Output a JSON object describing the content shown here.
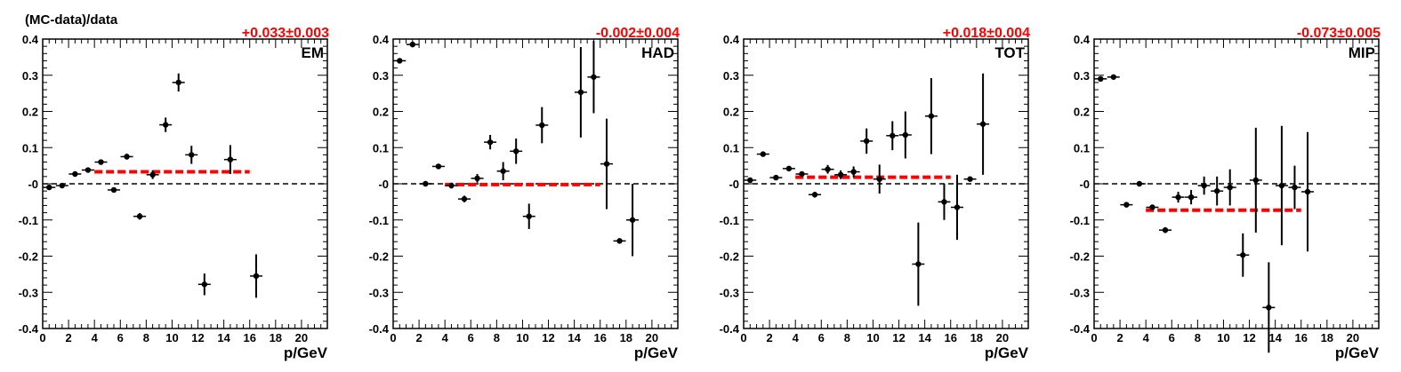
{
  "figure": {
    "ylabel": "(MC-data)/data",
    "xlabel": "p/GeV"
  },
  "chart_data": [
    {
      "type": "scatter",
      "label": "EM",
      "fit_text": "+0.033±0.003",
      "fit_value": 0.033,
      "fit_range": [
        4,
        16
      ],
      "xlim": [
        0,
        22
      ],
      "ylim": [
        -0.4,
        0.4
      ],
      "xticks": [
        "0",
        "2",
        "4",
        "6",
        "8",
        "10",
        "12",
        "14",
        "16",
        "18",
        "20"
      ],
      "yticks": [
        "0.4",
        "0.3",
        "0.2",
        "0.1",
        "-0",
        "-0.1",
        "-0.2",
        "-0.3",
        "-0.4"
      ],
      "reference_line": 0,
      "points": [
        {
          "x": 0.5,
          "y": -0.01,
          "err": 0.006
        },
        {
          "x": 1.5,
          "y": -0.005,
          "err": 0.006
        },
        {
          "x": 2.5,
          "y": 0.027,
          "err": 0.006
        },
        {
          "x": 3.5,
          "y": 0.038,
          "err": 0.006
        },
        {
          "x": 4.5,
          "y": 0.06,
          "err": 0.007
        },
        {
          "x": 5.5,
          "y": -0.017,
          "err": 0.007
        },
        {
          "x": 6.5,
          "y": 0.075,
          "err": 0.008
        },
        {
          "x": 7.5,
          "y": -0.09,
          "err": 0.009
        },
        {
          "x": 8.5,
          "y": 0.025,
          "err": 0.012
        },
        {
          "x": 9.5,
          "y": 0.163,
          "err": 0.02
        },
        {
          "x": 10.5,
          "y": 0.28,
          "err": 0.025
        },
        {
          "x": 11.5,
          "y": 0.08,
          "err": 0.025
        },
        {
          "x": 12.5,
          "y": -0.278,
          "err": 0.03
        },
        {
          "x": 14.5,
          "y": 0.067,
          "err": 0.04
        },
        {
          "x": 16.5,
          "y": -0.255,
          "err": 0.06
        }
      ]
    },
    {
      "type": "scatter",
      "label": "HAD",
      "fit_text": "-0.002±0.004",
      "fit_value": -0.002,
      "fit_range": [
        4,
        16
      ],
      "xlim": [
        0,
        22
      ],
      "ylim": [
        -0.4,
        0.4
      ],
      "xticks": [
        "0",
        "2",
        "4",
        "6",
        "8",
        "10",
        "12",
        "14",
        "16",
        "18",
        "20"
      ],
      "yticks": [
        "0.4",
        "0.3",
        "0.2",
        "0.1",
        "-0",
        "-0.1",
        "-0.2",
        "-0.3",
        "-0.4"
      ],
      "reference_line": 0,
      "points": [
        {
          "x": 0.5,
          "y": 0.34,
          "err": 0.006
        },
        {
          "x": 1.5,
          "y": 0.385,
          "err": 0.006
        },
        {
          "x": 2.5,
          "y": 0.0,
          "err": 0.006
        },
        {
          "x": 3.5,
          "y": 0.048,
          "err": 0.007
        },
        {
          "x": 4.5,
          "y": -0.005,
          "err": 0.008
        },
        {
          "x": 5.5,
          "y": -0.042,
          "err": 0.009
        },
        {
          "x": 6.5,
          "y": 0.015,
          "err": 0.012
        },
        {
          "x": 7.5,
          "y": 0.115,
          "err": 0.02
        },
        {
          "x": 8.5,
          "y": 0.035,
          "err": 0.025
        },
        {
          "x": 9.5,
          "y": 0.09,
          "err": 0.035
        },
        {
          "x": 10.5,
          "y": -0.09,
          "err": 0.035
        },
        {
          "x": 11.5,
          "y": 0.162,
          "err": 0.05
        },
        {
          "x": 14.5,
          "y": 0.253,
          "err": 0.125
        },
        {
          "x": 15.5,
          "y": 0.295,
          "err": 0.1
        },
        {
          "x": 16.5,
          "y": 0.055,
          "err": 0.125
        },
        {
          "x": 17.5,
          "y": -0.158,
          "err": 0.006
        },
        {
          "x": 18.5,
          "y": -0.1,
          "err": 0.1
        }
      ]
    },
    {
      "type": "scatter",
      "label": "TOT",
      "fit_text": "+0.018±0.004",
      "fit_value": 0.018,
      "fit_range": [
        4,
        16
      ],
      "xlim": [
        0,
        22
      ],
      "ylim": [
        -0.4,
        0.4
      ],
      "xticks": [
        "0",
        "2",
        "4",
        "6",
        "8",
        "10",
        "12",
        "14",
        "16",
        "18",
        "20"
      ],
      "yticks": [
        "0.4",
        "0.3",
        "0.2",
        "0.1",
        "-0",
        "-0.1",
        "-0.2",
        "-0.3",
        "-0.4"
      ],
      "reference_line": 0,
      "points": [
        {
          "x": 0.5,
          "y": 0.01,
          "err": 0.006
        },
        {
          "x": 1.5,
          "y": 0.082,
          "err": 0.006
        },
        {
          "x": 2.5,
          "y": 0.017,
          "err": 0.006
        },
        {
          "x": 3.5,
          "y": 0.042,
          "err": 0.006
        },
        {
          "x": 4.5,
          "y": 0.027,
          "err": 0.007
        },
        {
          "x": 5.5,
          "y": -0.03,
          "err": 0.008
        },
        {
          "x": 6.5,
          "y": 0.04,
          "err": 0.012
        },
        {
          "x": 7.5,
          "y": 0.025,
          "err": 0.012
        },
        {
          "x": 8.5,
          "y": 0.033,
          "err": 0.015
        },
        {
          "x": 9.5,
          "y": 0.118,
          "err": 0.035
        },
        {
          "x": 10.5,
          "y": 0.013,
          "err": 0.04
        },
        {
          "x": 11.5,
          "y": 0.133,
          "err": 0.04
        },
        {
          "x": 12.5,
          "y": 0.135,
          "err": 0.065
        },
        {
          "x": 13.5,
          "y": -0.222,
          "err": 0.115
        },
        {
          "x": 14.5,
          "y": 0.187,
          "err": 0.105
        },
        {
          "x": 15.5,
          "y": -0.05,
          "err": 0.05
        },
        {
          "x": 16.5,
          "y": -0.065,
          "err": 0.09
        },
        {
          "x": 17.5,
          "y": 0.013,
          "err": 0.006
        },
        {
          "x": 18.5,
          "y": 0.165,
          "err": 0.14
        }
      ]
    },
    {
      "type": "scatter",
      "label": "MIP",
      "fit_text": "-0.073±0.005",
      "fit_value": -0.073,
      "fit_range": [
        4,
        16
      ],
      "xlim": [
        0,
        22
      ],
      "ylim": [
        -0.4,
        0.4
      ],
      "xticks": [
        "0",
        "2",
        "4",
        "6",
        "8",
        "10",
        "12",
        "14",
        "16",
        "18",
        "20"
      ],
      "yticks": [
        "0.4",
        "0.3",
        "0.2",
        "0.1",
        "-0",
        "-0.1",
        "-0.2",
        "-0.3",
        "-0.4"
      ],
      "reference_line": 0,
      "points": [
        {
          "x": 0.5,
          "y": 0.29,
          "err": 0.006
        },
        {
          "x": 1.5,
          "y": 0.295,
          "err": 0.006
        },
        {
          "x": 2.5,
          "y": -0.058,
          "err": 0.006
        },
        {
          "x": 3.5,
          "y": 0.0,
          "err": 0.006
        },
        {
          "x": 4.5,
          "y": -0.065,
          "err": 0.006
        },
        {
          "x": 5.5,
          "y": -0.128,
          "err": 0.008
        },
        {
          "x": 6.5,
          "y": -0.037,
          "err": 0.015
        },
        {
          "x": 7.5,
          "y": -0.037,
          "err": 0.02
        },
        {
          "x": 8.5,
          "y": -0.005,
          "err": 0.025
        },
        {
          "x": 9.5,
          "y": -0.02,
          "err": 0.04
        },
        {
          "x": 10.5,
          "y": -0.01,
          "err": 0.05
        },
        {
          "x": 11.5,
          "y": -0.197,
          "err": 0.06
        },
        {
          "x": 12.5,
          "y": 0.01,
          "err": 0.145
        },
        {
          "x": 13.5,
          "y": -0.342,
          "err": 0.125
        },
        {
          "x": 14.5,
          "y": -0.005,
          "err": 0.165
        },
        {
          "x": 15.5,
          "y": -0.01,
          "err": 0.06
        },
        {
          "x": 16.5,
          "y": -0.022,
          "err": 0.165
        }
      ]
    }
  ],
  "colors": {
    "fit": "#ff0000",
    "markers": "#000000",
    "axes": "#000000"
  }
}
